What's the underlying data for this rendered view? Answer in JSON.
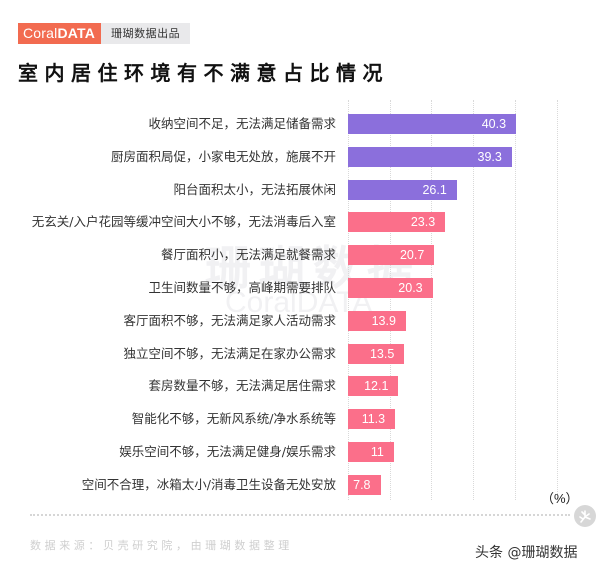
{
  "header": {
    "logo_brand_light": "Coral",
    "logo_brand_bold": "DATA",
    "logo_sub": "珊瑚数据出品",
    "title": "室内居住环境有不满意占比情况"
  },
  "watermark": {
    "cn": "珊瑚数据",
    "en": "CoralDATA"
  },
  "colors": {
    "purple": "#8b6fdc",
    "pink": "#fb6f8a",
    "brand": "#f26b50"
  },
  "chart_data": {
    "type": "bar",
    "orientation": "horizontal",
    "title": "室内居住环境有不满意占比情况",
    "xlabel": "",
    "ylabel": "",
    "unit": "(%)",
    "xlim": [
      0,
      50
    ],
    "grid": true,
    "categories": [
      "收纳空间不足，无法满足储备需求",
      "厨房面积局促，小家电无处放，施展不开",
      "阳台面积太小，无法拓展休闲",
      "无玄关/入户花园等缓冲空间大小不够，无法消毒后入室",
      "餐厅面积小，无法满足就餐需求",
      "卫生间数量不够，高峰期需要排队",
      "客厅面积不够，无法满足家人活动需求",
      "独立空间不够，无法满足在家办公需求",
      "套房数量不够，无法满足居住需求",
      "智能化不够，无新风系统/净水系统等",
      "娱乐空间不够，无法满足健身/娱乐需求",
      "空间不合理，冰箱太小/消毒卫生设备无处安放"
    ],
    "values": [
      40.3,
      39.3,
      26.1,
      23.3,
      20.7,
      20.3,
      13.9,
      13.5,
      12.1,
      11.3,
      11,
      7.8
    ],
    "value_labels": [
      "40.3",
      "39.3",
      "26.1",
      "23.3",
      "20.7",
      "20.3",
      "13.9",
      "13.5",
      "12.1",
      "11.3",
      "11",
      "7.8"
    ],
    "bar_colors": [
      "purple",
      "purple",
      "purple",
      "pink",
      "pink",
      "pink",
      "pink",
      "pink",
      "pink",
      "pink",
      "pink",
      "pink"
    ]
  },
  "footer": {
    "unit": "（%）",
    "source": "数据来源：贝壳研究院，由珊瑚数据整理",
    "credit": "头条 @珊瑚数据"
  }
}
